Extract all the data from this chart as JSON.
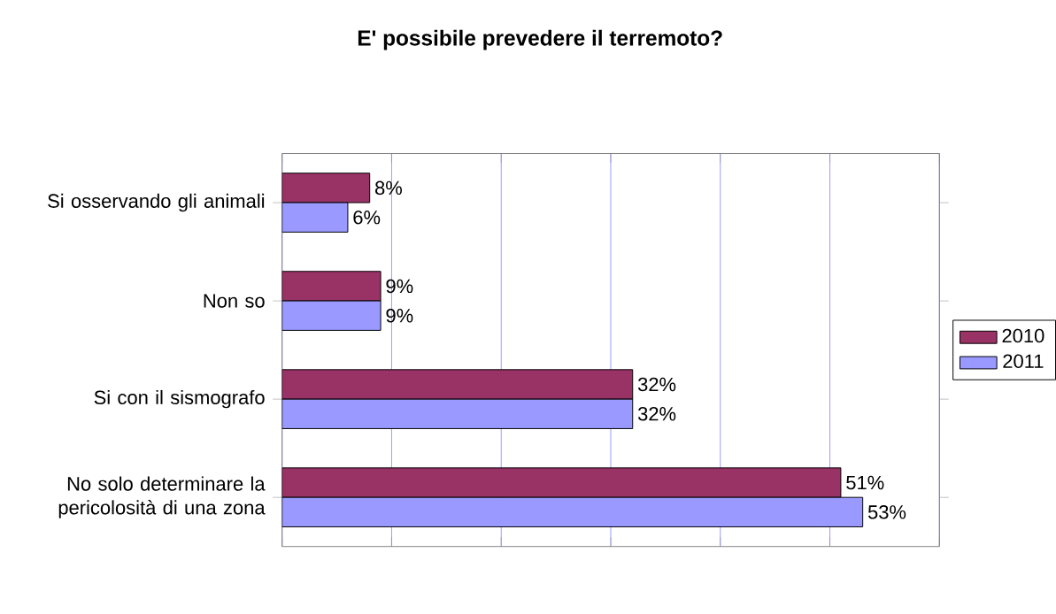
{
  "chart_data": {
    "type": "bar",
    "orientation": "horizontal",
    "title": "E' possibile prevedere il terremoto?",
    "categories": [
      "Si osservando gli animali",
      "Non so",
      "Si con il sismografo",
      "No solo determinare la pericolosità di una zona"
    ],
    "series": [
      {
        "name": "2010",
        "color": "#993366",
        "values": [
          8,
          9,
          32,
          51
        ],
        "value_labels": [
          "8%",
          "9%",
          "32%",
          "51%"
        ]
      },
      {
        "name": "2011",
        "color": "#9999ff",
        "values": [
          6,
          9,
          32,
          53
        ],
        "value_labels": [
          "6%",
          "9%",
          "32%",
          "53%"
        ]
      }
    ],
    "xlim": [
      0,
      60
    ],
    "xticks": [
      {
        "value": 0,
        "label": null
      },
      {
        "value": 10,
        "label": null
      },
      {
        "value": 20,
        "label": null
      },
      {
        "value": 30,
        "label": null
      },
      {
        "value": 40,
        "label": null
      },
      {
        "value": 50,
        "label": null
      },
      {
        "value": 60,
        "label": null
      }
    ],
    "tick_labels": "y",
    "grid": "x",
    "legend": "right"
  }
}
